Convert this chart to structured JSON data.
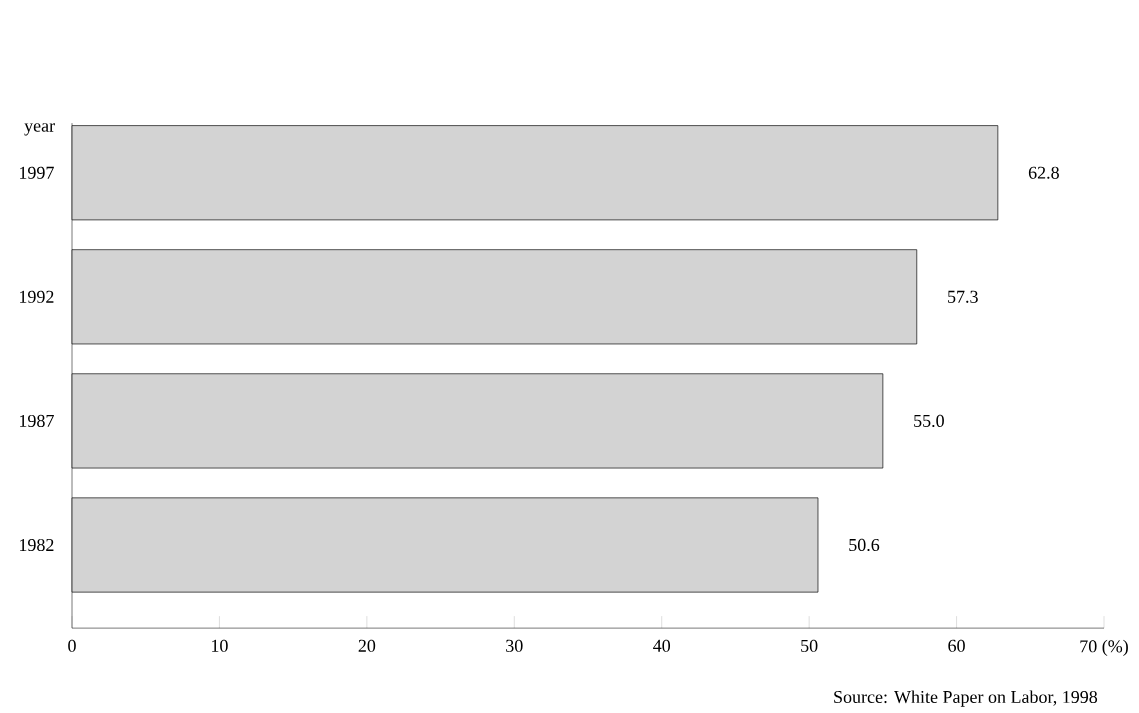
{
  "chart_data": {
    "type": "bar",
    "orientation": "horizontal",
    "categories": [
      "1997",
      "1992",
      "1987",
      "1982"
    ],
    "values": [
      62.8,
      57.3,
      55.0,
      50.6
    ],
    "value_labels": [
      "62.8",
      "57.3",
      "55.0",
      "50.6"
    ],
    "color": "#d3d3d3",
    "xlim": [
      0,
      70
    ],
    "xticks": [
      0,
      10,
      20,
      30,
      40,
      50,
      60,
      {
        "value": 70,
        "label": "70 (%)"
      }
    ],
    "ylabel": "year",
    "annotations": [
      "Source: White Paper on Labor,  1998"
    ]
  }
}
